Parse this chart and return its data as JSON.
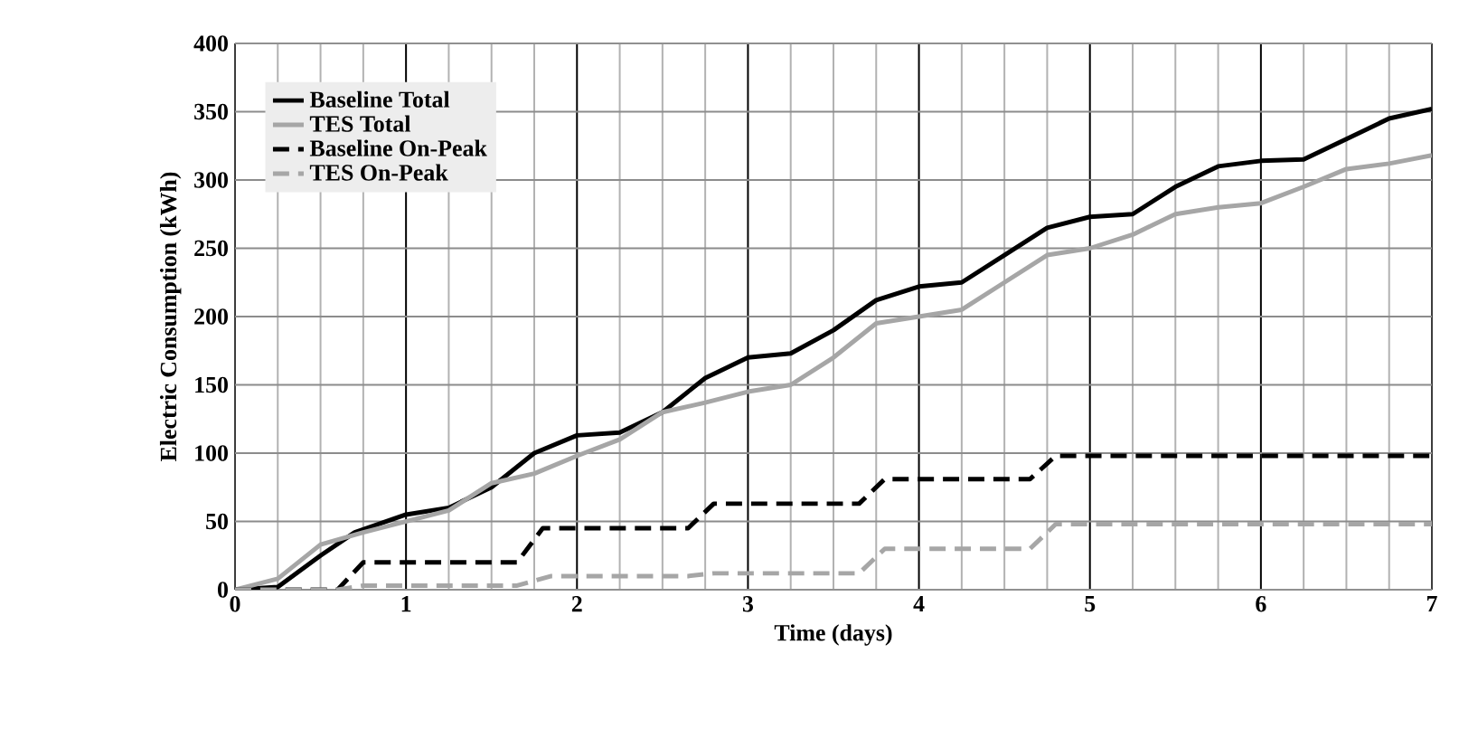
{
  "chart_data": {
    "type": "line",
    "xlabel": "Time (days)",
    "ylabel": "Electric Consumption (kWh)",
    "xlim": [
      0,
      7
    ],
    "ylim": [
      0,
      400
    ],
    "xticks": [
      0,
      1,
      2,
      3,
      4,
      5,
      6,
      7
    ],
    "yticks": [
      0,
      50,
      100,
      150,
      200,
      250,
      300,
      350,
      400
    ],
    "grid": true,
    "legend": "top left",
    "marker": "none",
    "series": [
      {
        "name": "Baseline Total",
        "color": "#000000",
        "line_style": "solid",
        "x": [
          0,
          0.25,
          0.5,
          0.7,
          1,
          1.25,
          1.5,
          1.75,
          2,
          2.25,
          2.5,
          2.75,
          3,
          3.25,
          3.5,
          3.75,
          4,
          4.25,
          4.5,
          4.75,
          5,
          5.25,
          5.5,
          5.75,
          6,
          6.25,
          6.5,
          6.75,
          7
        ],
        "values": [
          0,
          2,
          25,
          42,
          55,
          60,
          75,
          100,
          113,
          115,
          130,
          155,
          170,
          173,
          190,
          212,
          222,
          225,
          245,
          265,
          273,
          275,
          295,
          310,
          314,
          315,
          330,
          345,
          352
        ]
      },
      {
        "name": "TES Total",
        "color": "#a6a6a6",
        "line_style": "solid",
        "x": [
          0,
          0.25,
          0.5,
          0.75,
          1,
          1.25,
          1.5,
          1.75,
          2,
          2.25,
          2.5,
          2.75,
          3,
          3.25,
          3.5,
          3.75,
          4,
          4.25,
          4.5,
          4.75,
          5,
          5.25,
          5.5,
          5.75,
          6,
          6.25,
          6.5,
          6.75,
          7
        ],
        "values": [
          0,
          8,
          33,
          42,
          50,
          58,
          78,
          85,
          98,
          110,
          130,
          137,
          145,
          150,
          170,
          195,
          200,
          205,
          225,
          245,
          250,
          260,
          275,
          280,
          283,
          295,
          308,
          312,
          318
        ]
      },
      {
        "name": "Baseline On-Peak",
        "color": "#000000",
        "line_style": "dashed",
        "x": [
          0,
          0.6,
          0.75,
          1.65,
          1.8,
          2.65,
          2.8,
          3.65,
          3.8,
          4.65,
          4.8,
          7
        ],
        "values": [
          0,
          0,
          20,
          20,
          45,
          45,
          63,
          63,
          81,
          81,
          98,
          98
        ]
      },
      {
        "name": "TES On-Peak",
        "color": "#a6a6a6",
        "line_style": "dashed",
        "x": [
          0,
          0.6,
          0.75,
          1.65,
          1.85,
          2.65,
          2.8,
          3.65,
          3.8,
          4.65,
          4.8,
          7
        ],
        "values": [
          0,
          0,
          3,
          3,
          10,
          10,
          12,
          12,
          30,
          30,
          48,
          48
        ]
      }
    ]
  }
}
